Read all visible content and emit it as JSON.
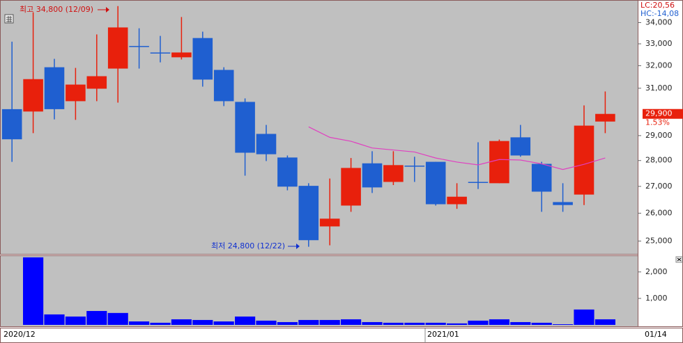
{
  "chart_data": {
    "type": "candlestick",
    "log_scale": true,
    "up_color": "#e8200c",
    "down_color": "#1f5fd0",
    "categories": [
      "2020/12",
      null,
      null,
      null,
      null,
      null,
      null,
      null,
      null,
      null,
      null,
      null,
      null,
      null,
      null,
      null,
      null,
      null,
      null,
      null,
      "2021/01",
      null,
      null,
      null,
      null,
      null,
      null,
      null,
      null
    ],
    "open": [
      30100,
      30000,
      31930,
      30440,
      30980,
      31870,
      32900,
      32600,
      32380,
      33270,
      31810,
      30410,
      29070,
      28120,
      27020,
      25520,
      26280,
      27890,
      27170,
      27800,
      27950,
      26330,
      27170,
      27120,
      28930,
      27870,
      26410,
      26690,
      29580
    ],
    "high": [
      33100,
      34500,
      32310,
      31900,
      33440,
      34800,
      33730,
      33370,
      34270,
      33570,
      31930,
      30560,
      29440,
      28200,
      27120,
      27300,
      28100,
      28370,
      28370,
      28150,
      27950,
      27120,
      28730,
      28840,
      29440,
      27950,
      27120,
      30260,
      30860
    ],
    "low": [
      27950,
      29100,
      29670,
      29650,
      30440,
      30380,
      31870,
      32150,
      32280,
      31070,
      30230,
      27410,
      27980,
      26850,
      24800,
      24850,
      26050,
      26750,
      27050,
      27170,
      26280,
      26160,
      26900,
      27120,
      28150,
      26050,
      26050,
      26300,
      29100
    ],
    "close": [
      28850,
      31400,
      30100,
      31160,
      31530,
      33770,
      32900,
      32600,
      32600,
      31380,
      30440,
      28310,
      28250,
      26990,
      25030,
      25800,
      27710,
      26960,
      27820,
      27800,
      26330,
      26610,
      27170,
      28780,
      28200,
      26800,
      26300,
      29410,
      29900
    ],
    "close_value_labels": [
      null,
      null,
      null,
      null,
      null,
      null,
      null,
      null,
      null,
      null,
      null,
      null,
      null,
      null,
      null,
      null,
      null,
      null,
      null,
      null,
      null,
      null,
      null,
      null,
      null,
      null,
      null,
      null,
      "29,900"
    ],
    "ma": {
      "color": "#e040c0",
      "values": [
        null,
        null,
        null,
        null,
        null,
        null,
        null,
        null,
        null,
        null,
        null,
        null,
        null,
        null,
        29360,
        28930,
        28770,
        28500,
        28420,
        28340,
        28100,
        27940,
        27830,
        28040,
        28020,
        27870,
        27650,
        27850,
        28100
      ]
    },
    "ylim": [
      24550,
      35100
    ],
    "yticks": [
      {
        "value": 25000,
        "label": "25,000"
      },
      {
        "value": 26000,
        "label": "26,000"
      },
      {
        "value": 27000,
        "label": "27,000"
      },
      {
        "value": 28000,
        "label": "28,000"
      },
      {
        "value": 29000,
        "label": "29,000"
      },
      {
        "value": 31000,
        "label": "31,000"
      },
      {
        "value": 32000,
        "label": "32,000"
      },
      {
        "value": 33000,
        "label": "33,000"
      },
      {
        "value": 34000,
        "label": "34,000"
      }
    ],
    "high_annotation": "최고 34,800 (12/09)",
    "low_annotation": "최저 24,800 (12/22)",
    "change_label": "1.53%",
    "lc_label": "LC:20,56",
    "hc_label": "HC:-14,08",
    "date_label": "01/14",
    "volume": {
      "color": "#0000ff",
      "values": [
        null,
        2550,
        395,
        315,
        525,
        450,
        130,
        80,
        210,
        185,
        130,
        315,
        160,
        105,
        185,
        185,
        210,
        105,
        80,
        80,
        80,
        55,
        160,
        210,
        105,
        80,
        25,
        580,
        210
      ],
      "ylim": [
        -80,
        2600
      ],
      "yticks": [
        {
          "value": 1000,
          "label": "1,000"
        },
        {
          "value": 2000,
          "label": "2,000"
        }
      ]
    }
  }
}
